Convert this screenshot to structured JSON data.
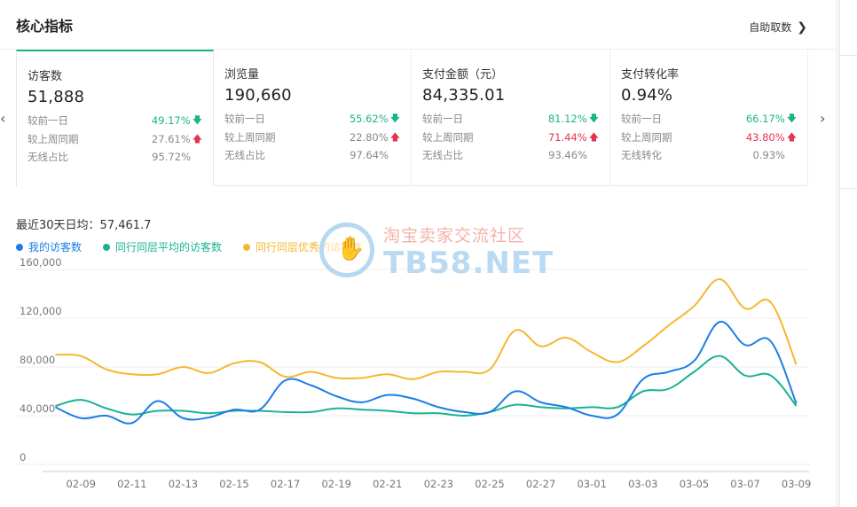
{
  "header": {
    "title": "核心指标",
    "action_label": "自助取数",
    "action_icon": "chevron-right-icon"
  },
  "cards": [
    {
      "label": "访客数",
      "value": "51,888",
      "rows": [
        {
          "label": "较前一日",
          "value": "49.17%",
          "trend": "down"
        },
        {
          "label": "较上周同期",
          "value": "27.61%",
          "trend": "up"
        },
        {
          "label": "无线占比",
          "value": "95.72%",
          "trend": "none"
        }
      ]
    },
    {
      "label": "浏览量",
      "value": "190,660",
      "rows": [
        {
          "label": "较前一日",
          "value": "55.62%",
          "trend": "down"
        },
        {
          "label": "较上周同期",
          "value": "22.80%",
          "trend": "up"
        },
        {
          "label": "无线占比",
          "value": "97.64%",
          "trend": "none"
        }
      ]
    },
    {
      "label": "支付金额（元）",
      "value": "84,335.01",
      "rows": [
        {
          "label": "较前一日",
          "value": "81.12%",
          "trend": "down"
        },
        {
          "label": "较上周同期",
          "value": "71.44%",
          "trend": "up-red"
        },
        {
          "label": "无线占比",
          "value": "93.46%",
          "trend": "none"
        }
      ]
    },
    {
      "label": "支付转化率",
      "value": "0.94%",
      "rows": [
        {
          "label": "较前一日",
          "value": "66.17%",
          "trend": "down"
        },
        {
          "label": "较上周同期",
          "value": "43.80%",
          "trend": "up-red"
        },
        {
          "label": "无线转化",
          "value": "0.93%",
          "trend": "none"
        }
      ]
    }
  ],
  "colors": {
    "up": "#e5334e",
    "down": "#1ab38a",
    "accent": "#1ab38a"
  },
  "summary": {
    "avg_label": "最近30天日均：57,461.7"
  },
  "watermark": {
    "cn": "淘宝卖家交流社区",
    "en": "TB58.NET"
  },
  "chart_data": {
    "type": "line",
    "title": "",
    "xlabel": "",
    "ylabel": "",
    "ylim": [
      0,
      160000
    ],
    "yticks": [
      "0",
      "40,000",
      "80,000",
      "120,000",
      "160,000"
    ],
    "x": [
      "02-08",
      "02-09",
      "02-10",
      "02-11",
      "02-12",
      "02-13",
      "02-14",
      "02-15",
      "02-16",
      "02-17",
      "02-18",
      "02-19",
      "02-20",
      "02-21",
      "02-22",
      "02-23",
      "02-24",
      "02-25",
      "02-26",
      "02-27",
      "02-28",
      "03-01",
      "03-02",
      "03-03",
      "03-04",
      "03-05",
      "03-06",
      "03-07",
      "03-08",
      "03-09"
    ],
    "xticks": [
      "02-09",
      "02-11",
      "02-13",
      "02-15",
      "02-17",
      "02-19",
      "02-21",
      "02-23",
      "02-25",
      "02-27",
      "03-01",
      "03-03",
      "03-05",
      "03-07",
      "03-09"
    ],
    "grid": "horizontal",
    "legend": "top-left",
    "series": [
      {
        "name": "我的访客数",
        "color": "#1a7ee6",
        "values": [
          47000,
          38000,
          40000,
          34000,
          52000,
          38000,
          38500,
          45000,
          45000,
          69000,
          65000,
          56000,
          51000,
          57000,
          54000,
          47000,
          43000,
          43000,
          60000,
          51000,
          47000,
          40000,
          41000,
          70000,
          76000,
          85000,
          117000,
          98000,
          101000,
          50000
        ]
      },
      {
        "name": "同行同层平均的访客数",
        "color": "#1ab394",
        "values": [
          48000,
          53000,
          46000,
          41000,
          44000,
          44000,
          42000,
          44000,
          44000,
          43000,
          43000,
          46000,
          45000,
          44000,
          42000,
          42000,
          40000,
          43000,
          49000,
          47000,
          46000,
          47000,
          47000,
          60000,
          62000,
          76000,
          89000,
          73000,
          73000,
          48000
        ]
      },
      {
        "name": "同行同层优秀的访客数",
        "color": "#f5b731",
        "values": [
          90000,
          89000,
          78000,
          74000,
          74000,
          80000,
          75000,
          83000,
          84000,
          72000,
          76000,
          71000,
          71000,
          74000,
          70000,
          76000,
          76000,
          78000,
          110000,
          97000,
          104000,
          92000,
          84000,
          97000,
          114000,
          130000,
          152000,
          128000,
          133000,
          82000
        ]
      }
    ]
  }
}
